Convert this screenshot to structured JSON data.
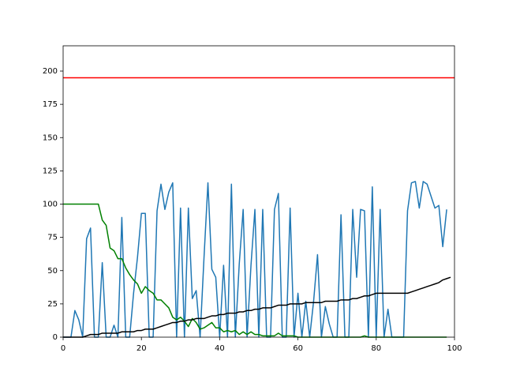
{
  "chart_data": {
    "type": "line",
    "x": [
      0,
      1,
      2,
      3,
      4,
      5,
      6,
      7,
      8,
      9,
      10,
      11,
      12,
      13,
      14,
      15,
      16,
      17,
      18,
      19,
      20,
      21,
      22,
      23,
      24,
      25,
      26,
      27,
      28,
      29,
      30,
      31,
      32,
      33,
      34,
      35,
      36,
      37,
      38,
      39,
      40,
      41,
      42,
      43,
      44,
      45,
      46,
      47,
      48,
      49,
      50,
      51,
      52,
      53,
      54,
      55,
      56,
      57,
      58,
      59,
      60,
      61,
      62,
      63,
      64,
      65,
      66,
      67,
      68,
      69,
      70,
      71,
      72,
      73,
      74,
      75,
      76,
      77,
      78,
      79,
      80,
      81,
      82,
      83,
      84,
      85,
      86,
      87,
      88,
      89,
      90,
      91,
      92,
      93,
      94,
      95,
      96,
      97,
      98,
      99
    ],
    "series": [
      {
        "color": "#1f77b4",
        "values": [
          0,
          0,
          0,
          20,
          13,
          0,
          74,
          82,
          0,
          0,
          56,
          0,
          0,
          9,
          0,
          90,
          0,
          0,
          33,
          60,
          93,
          93,
          0,
          0,
          95,
          115,
          96,
          109,
          116,
          0,
          97,
          0,
          97,
          29,
          35,
          0,
          60,
          116,
          51,
          45,
          0,
          54,
          0,
          115,
          0,
          55,
          96,
          0,
          54,
          96,
          0,
          96,
          0,
          0,
          96,
          108,
          0,
          0,
          97,
          0,
          33,
          0,
          27,
          0,
          27,
          62,
          0,
          23,
          10,
          0,
          0,
          92,
          0,
          0,
          96,
          45,
          96,
          95,
          0,
          113,
          0,
          96,
          0,
          21,
          0,
          0,
          0,
          0,
          95,
          116,
          117,
          97,
          117,
          115,
          106,
          97,
          99,
          68,
          96,
          null
        ]
      },
      {
        "color": "#008000",
        "values": [
          100,
          100,
          100,
          100,
          100,
          100,
          100,
          100,
          100,
          100,
          88,
          84,
          67,
          65,
          59,
          59,
          52,
          47,
          43,
          40,
          33,
          38,
          35,
          33,
          28,
          28,
          25,
          22,
          15,
          13,
          15,
          12,
          8,
          14,
          11,
          6,
          7,
          9,
          11,
          7,
          7,
          4,
          5,
          4,
          5,
          2,
          4,
          2,
          4,
          2,
          2,
          1,
          1,
          1,
          1,
          3,
          1,
          1,
          1,
          1,
          0,
          0,
          0,
          0,
          0,
          0,
          0,
          0,
          0,
          0,
          0,
          0,
          0,
          0,
          0,
          0,
          0,
          1,
          0,
          0,
          0,
          0,
          0,
          0,
          0,
          0,
          0,
          0,
          0,
          0,
          0,
          0,
          0,
          0,
          0,
          0,
          0,
          0,
          0,
          null
        ]
      },
      {
        "color": "#000000",
        "values": [
          0,
          0,
          0,
          0,
          0,
          0,
          1,
          2,
          2,
          2,
          3,
          3,
          3,
          3,
          3,
          4,
          4,
          4,
          4,
          5,
          5,
          6,
          6,
          6,
          7,
          8,
          9,
          10,
          11,
          11,
          12,
          12,
          13,
          13,
          14,
          14,
          14,
          15,
          16,
          16,
          17,
          17,
          18,
          18,
          18,
          19,
          19,
          20,
          20,
          21,
          21,
          22,
          22,
          22,
          23,
          24,
          24,
          24,
          25,
          25,
          25,
          25,
          26,
          26,
          26,
          26,
          26,
          27,
          27,
          27,
          27,
          28,
          28,
          28,
          29,
          29,
          30,
          31,
          31,
          32,
          33,
          33,
          33,
          33,
          33,
          33,
          33,
          33,
          33,
          34,
          35,
          36,
          37,
          38,
          39,
          40,
          41,
          43,
          44,
          45
        ]
      }
    ],
    "hlines": [
      {
        "value": 195,
        "color": "#ff0000"
      }
    ],
    "xlim": [
      0,
      100
    ],
    "ylim": [
      0,
      219
    ],
    "xticks": [
      0,
      20,
      40,
      60,
      80,
      100
    ],
    "yticks": [
      0,
      25,
      50,
      75,
      100,
      125,
      150,
      175,
      200
    ]
  }
}
